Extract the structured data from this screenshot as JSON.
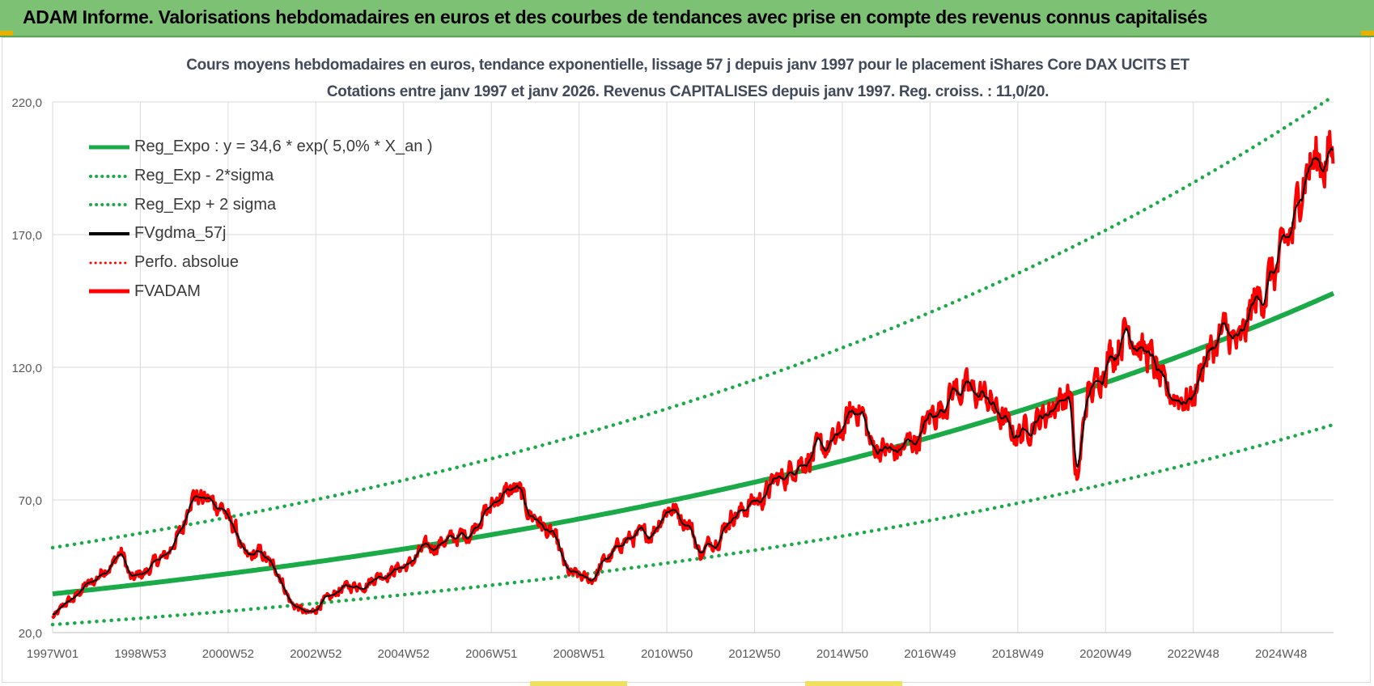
{
  "banner": {
    "title": "ADAM Informe. Valorisations hebdomadaires en euros et des courbes de tendances avec prise en compte des revenus connus capitalisés",
    "color": "#7dc274"
  },
  "chart_data": {
    "type": "line",
    "title": "Cours moyens  hebdomadaires en euros, tendance exponentielle, lissage 57 j depuis janv 1997 pour le placement iShares Core DAX UCITS ET",
    "subtitle": "Cotations entre janv 1997 et janv 2026. Revenus  CAPITALISES depuis janv 1997. Reg. croiss. : 11,0/20.",
    "ylim": [
      20,
      220
    ],
    "y_ticks": [
      "220,0",
      "170,0",
      "120,0",
      "70,0",
      "20,0"
    ],
    "x_ticks": [
      "1997W01",
      "1998W53",
      "2000W52",
      "2002W52",
      "2004W52",
      "2006W51",
      "2008W51",
      "2010W50",
      "2012W50",
      "2014W50",
      "2016W49",
      "2018W49",
      "2020W49",
      "2022W48",
      "2024W48"
    ],
    "x_range_years": [
      1997.0,
      2026.05
    ],
    "grid": true,
    "legend_position": "top-left",
    "regression": {
      "a": 34.6,
      "rate": 0.05,
      "sigma_factor": 0.4075
    },
    "series": [
      {
        "name": "Reg_Expo : y = 34,6 * exp( 5,0% *  X_an )",
        "color": "#1aaa47",
        "style": "solid"
      },
      {
        "name": "Reg_Exp - 2*sigma",
        "color": "#1aaa47",
        "style": "dotted"
      },
      {
        "name": "Reg_Exp + 2 sigma",
        "color": "#1aaa47",
        "style": "dotted"
      },
      {
        "name": "FVgdma_57j",
        "color": "#000000",
        "style": "solid"
      },
      {
        "name": "Perfo. absolue",
        "color": "#ff0000",
        "style": "dotted"
      },
      {
        "name": "FVADAM",
        "color": "#ff0000",
        "style": "solid",
        "x": [
          1997.0,
          1997.4,
          1997.8,
          1998.3,
          1998.55,
          1998.8,
          1999.0,
          1999.5,
          1999.9,
          2000.15,
          2000.5,
          2000.8,
          2001.1,
          2001.4,
          2001.7,
          2002.0,
          2002.5,
          2002.8,
          2003.2,
          2003.6,
          2004.0,
          2004.5,
          2005.0,
          2005.5,
          2006.0,
          2006.4,
          2006.8,
          2007.2,
          2007.5,
          2007.9,
          2008.3,
          2008.75,
          2009.2,
          2009.6,
          2010.0,
          2010.5,
          2011.0,
          2011.4,
          2011.7,
          2012.0,
          2012.5,
          2013.0,
          2013.5,
          2014.0,
          2014.6,
          2015.3,
          2015.6,
          2016.1,
          2016.6,
          2017.0,
          2017.5,
          2018.0,
          2018.9,
          2019.3,
          2019.9,
          2020.1,
          2020.2,
          2020.5,
          2021.0,
          2021.4,
          2021.8,
          2022.3,
          2022.8,
          2023.2,
          2023.6,
          2023.9,
          2024.3,
          2024.7,
          2025.1,
          2025.4,
          2025.7,
          2026.0
        ],
        "values": [
          26,
          32,
          38,
          45,
          50,
          40,
          42,
          48,
          57,
          72,
          70,
          68,
          60,
          48,
          50,
          45,
          30,
          27,
          32,
          37,
          38,
          42,
          45,
          52,
          55,
          57,
          65,
          72,
          74,
          64,
          57,
          42,
          40,
          48,
          55,
          57,
          67,
          62,
          50,
          55,
          65,
          70,
          78,
          85,
          90,
          105,
          90,
          88,
          93,
          103,
          112,
          110,
          95,
          100,
          108,
          110,
          76,
          110,
          125,
          135,
          125,
          110,
          108,
          125,
          133,
          128,
          145,
          155,
          170,
          195,
          198,
          200
        ]
      }
    ]
  }
}
